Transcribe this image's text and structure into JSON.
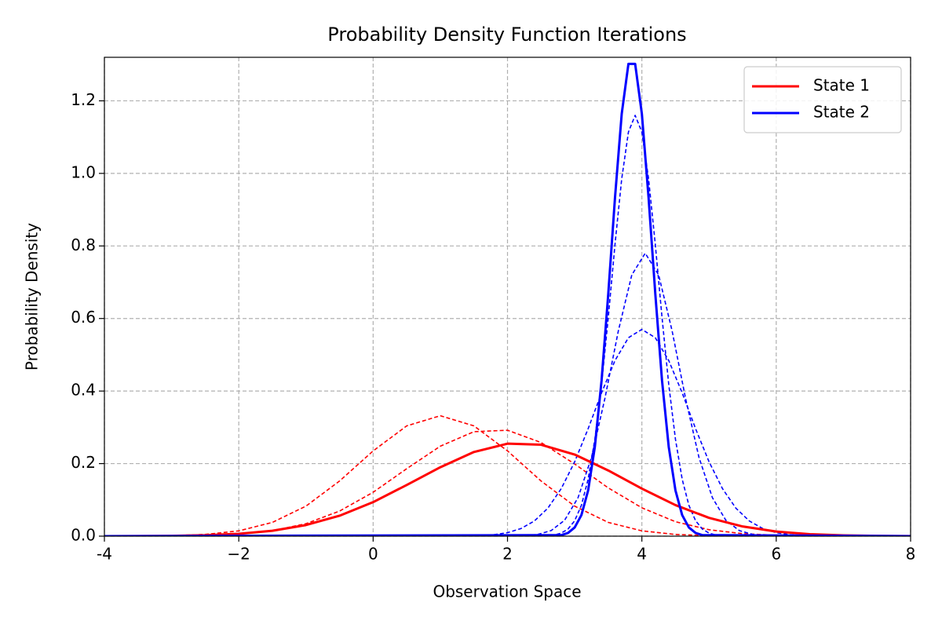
{
  "chart_data": {
    "type": "line",
    "title": "Probability Density Function Iterations",
    "x_label": "Observation Space",
    "y_label": "Probability Density",
    "xlim": [
      -4,
      8
    ],
    "ylim": [
      0,
      1.32
    ],
    "xticks": [
      -4,
      {
        "value": -2,
        "label": "−2"
      },
      0,
      2,
      4,
      6,
      8
    ],
    "yticks": [
      {
        "value": 0,
        "label": "0.0"
      },
      0.2,
      0.4,
      0.6,
      0.8,
      {
        "value": 1,
        "label": "1.0"
      },
      1.2
    ],
    "grid": true,
    "legend": "upper right",
    "series": [
      {
        "name": "State 1",
        "color": "#ff0000",
        "dashed": false,
        "x": [
          -4,
          -3.5,
          -3,
          -2.5,
          -2,
          -1.5,
          -1,
          -0.5,
          0,
          0.5,
          1,
          1.5,
          2,
          2.5,
          3,
          3.5,
          4,
          4.5,
          5,
          5.5,
          6,
          6.5,
          7,
          7.5,
          8
        ],
        "values": [
          0.0001,
          0.0003,
          0.0009,
          0.0026,
          0.0066,
          0.0149,
          0.0306,
          0.0563,
          0.0938,
          0.141,
          0.19,
          0.232,
          0.255,
          0.252,
          0.225,
          0.181,
          0.131,
          0.0856,
          0.0504,
          0.0267,
          0.0127,
          0.0055,
          0.0021,
          0.0007,
          0.0002
        ]
      },
      {
        "name": "State 2",
        "color": "#0000ff",
        "dashed": false,
        "x": [
          -4,
          2.8,
          2.9,
          3,
          3.1,
          3.2,
          3.3,
          3.4,
          3.5,
          3.6,
          3.7,
          3.8,
          3.9,
          4,
          4.1,
          4.2,
          4.3,
          4.4,
          4.5,
          4.6,
          4.7,
          4.8,
          4.9,
          8
        ],
        "values": [
          0,
          0.0029,
          0.0088,
          0.0239,
          0.058,
          0.126,
          0.246,
          0.429,
          0.668,
          0.933,
          1.164,
          1.302,
          1.302,
          1.164,
          0.933,
          0.668,
          0.429,
          0.246,
          0.126,
          0.058,
          0.0239,
          0.0088,
          0.0029,
          0
        ]
      },
      {
        "color": "#ff0000",
        "dashed": true,
        "x": [
          -4,
          -3.5,
          -3,
          -2.5,
          -2,
          -1.5,
          -1,
          -0.5,
          0,
          0.5,
          1,
          1.5,
          2,
          2.5,
          3,
          3.5,
          4,
          4.5,
          5,
          5.5,
          6,
          6.5,
          7,
          7.5,
          8
        ],
        "values": [
          0.0001,
          0.0003,
          0.0013,
          0.0047,
          0.0146,
          0.0379,
          0.0828,
          0.152,
          0.235,
          0.304,
          0.332,
          0.304,
          0.235,
          0.152,
          0.0828,
          0.0379,
          0.0146,
          0.0047,
          0.0013,
          0.0003,
          0.0001,
          0,
          0,
          0,
          0
        ]
      },
      {
        "color": "#ff0000",
        "dashed": true,
        "x": [
          -4,
          -3.5,
          -3,
          -2.5,
          -2,
          -1.5,
          -1,
          -0.5,
          0,
          0.5,
          1,
          1.5,
          2,
          2.5,
          3,
          3.5,
          4,
          4.5,
          5,
          5.5,
          6,
          6.5,
          7,
          7.5,
          8
        ],
        "values": [
          0,
          0.0001,
          0.0005,
          0.0019,
          0.0056,
          0.0148,
          0.0344,
          0.0691,
          0.121,
          0.186,
          0.248,
          0.288,
          0.292,
          0.258,
          0.199,
          0.133,
          0.0782,
          0.0398,
          0.0177,
          0.0069,
          0.0023,
          0.0007,
          0.0002,
          0,
          0
        ]
      },
      {
        "color": "#0000ff",
        "dashed": true,
        "x": [
          -4,
          2.7,
          2.8,
          2.9,
          3,
          3.1,
          3.2,
          3.3,
          3.4,
          3.5,
          3.6,
          3.7,
          3.8,
          3.9,
          4,
          4.1,
          4.2,
          4.3,
          4.4,
          4.5,
          4.6,
          4.7,
          4.8,
          4.9,
          5,
          5.1,
          8
        ],
        "values": [
          0,
          0.0032,
          0.0084,
          0.0196,
          0.0425,
          0.085,
          0.157,
          0.267,
          0.418,
          0.603,
          0.804,
          0.985,
          1.114,
          1.16,
          1.114,
          0.985,
          0.804,
          0.603,
          0.418,
          0.267,
          0.157,
          0.085,
          0.0425,
          0.0196,
          0.0084,
          0.0032,
          0
        ]
      },
      {
        "color": "#0000ff",
        "dashed": true,
        "x": [
          -4,
          2.25,
          2.45,
          2.65,
          2.85,
          3.05,
          3.25,
          3.45,
          3.65,
          3.85,
          4.05,
          4.25,
          4.45,
          4.65,
          4.85,
          5.05,
          5.25,
          5.45,
          5.65,
          5.85,
          8
        ],
        "values": [
          0,
          0.0012,
          0.0047,
          0.0154,
          0.0438,
          0.106,
          0.217,
          0.38,
          0.566,
          0.72,
          0.78,
          0.72,
          0.566,
          0.38,
          0.217,
          0.106,
          0.0438,
          0.0154,
          0.0047,
          0.0012,
          0
        ]
      },
      {
        "color": "#0000ff",
        "dashed": true,
        "x": [
          -4,
          1.6,
          1.8,
          2,
          2.2,
          2.4,
          2.6,
          2.8,
          3,
          3.2,
          3.4,
          3.6,
          3.8,
          4,
          4.2,
          4.4,
          4.6,
          4.8,
          5,
          5.2,
          5.4,
          5.6,
          5.8,
          6,
          6.2,
          6.4,
          8
        ],
        "values": [
          0,
          0.0016,
          0.0041,
          0.0096,
          0.0209,
          0.0418,
          0.077,
          0.131,
          0.205,
          0.296,
          0.395,
          0.484,
          0.547,
          0.57,
          0.547,
          0.484,
          0.395,
          0.296,
          0.205,
          0.131,
          0.077,
          0.0418,
          0.0209,
          0.0096,
          0.0041,
          0.0016,
          0
        ]
      }
    ]
  }
}
